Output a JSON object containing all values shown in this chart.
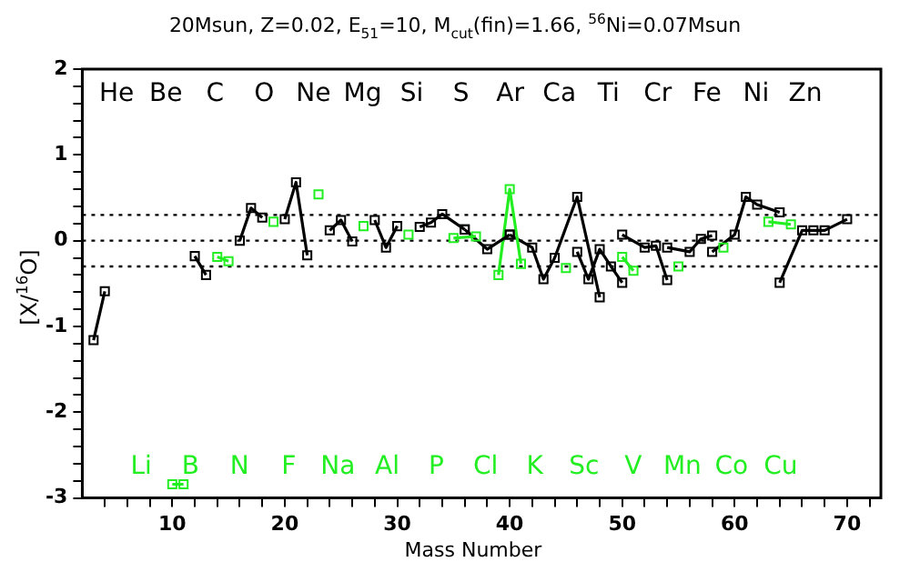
{
  "chart_data": {
    "type": "line",
    "title": "20Msun, Z=0.02, E$_{51}$=10, M$_{cut}$(fin)=1.66, $^{56}$Ni=0.07Msun",
    "xlabel": "Mass Number",
    "ylabel": "[X/$^{16}$O]",
    "xlim": [
      2,
      73
    ],
    "ylim": [
      -3,
      2
    ],
    "xticks": [
      {
        "value": 4,
        "label": null
      },
      {
        "value": 6,
        "label": null
      },
      {
        "value": 8,
        "label": null
      },
      10,
      {
        "value": 12,
        "label": null
      },
      {
        "value": 14,
        "label": null
      },
      {
        "value": 16,
        "label": null
      },
      {
        "value": 18,
        "label": null
      },
      20,
      {
        "value": 22,
        "label": null
      },
      {
        "value": 24,
        "label": null
      },
      {
        "value": 26,
        "label": null
      },
      {
        "value": 28,
        "label": null
      },
      30,
      {
        "value": 32,
        "label": null
      },
      {
        "value": 34,
        "label": null
      },
      {
        "value": 36,
        "label": null
      },
      {
        "value": 38,
        "label": null
      },
      40,
      {
        "value": 42,
        "label": null
      },
      {
        "value": 44,
        "label": null
      },
      {
        "value": 46,
        "label": null
      },
      {
        "value": 48,
        "label": null
      },
      50,
      {
        "value": 52,
        "label": null
      },
      {
        "value": 54,
        "label": null
      },
      {
        "value": 56,
        "label": null
      },
      {
        "value": 58,
        "label": null
      },
      60,
      {
        "value": 62,
        "label": null
      },
      {
        "value": 64,
        "label": null
      },
      {
        "value": 66,
        "label": null
      },
      {
        "value": 68,
        "label": null
      },
      70,
      {
        "value": 72,
        "label": null
      }
    ],
    "yticks": [
      -3,
      {
        "value": -2.8,
        "label": null
      },
      {
        "value": -2.6,
        "label": null
      },
      {
        "value": -2.4,
        "label": null
      },
      {
        "value": -2.2,
        "label": null
      },
      -2,
      {
        "value": -1.8,
        "label": null
      },
      {
        "value": -1.6,
        "label": null
      },
      {
        "value": -1.4,
        "label": null
      },
      {
        "value": -1.2,
        "label": null
      },
      -1,
      {
        "value": -0.8,
        "label": null
      },
      {
        "value": -0.6,
        "label": null
      },
      {
        "value": -0.4,
        "label": null
      },
      {
        "value": -0.2,
        "label": null
      },
      0,
      {
        "value": 0.2,
        "label": null
      },
      {
        "value": 0.4,
        "label": null
      },
      {
        "value": 0.6,
        "label": null
      },
      {
        "value": 0.8,
        "label": null
      },
      1,
      {
        "value": 1.2,
        "label": null
      },
      {
        "value": 1.4,
        "label": null
      },
      {
        "value": 1.6,
        "label": null
      },
      {
        "value": 1.8,
        "label": null
      },
      2
    ],
    "marker": "square",
    "line_style": "solid",
    "ref_lines": [
      {
        "axis": "y",
        "value": 0.3,
        "color": "#000000",
        "line_style": "dotted"
      },
      {
        "axis": "y",
        "value": 0,
        "color": "#000000",
        "line_style": "dotted"
      },
      {
        "axis": "y",
        "value": -0.3,
        "color": "#000000",
        "line_style": "dotted"
      }
    ],
    "annotations": [
      "He",
      "Li",
      "Be",
      "B",
      "C",
      "N",
      "O",
      "F",
      "Ne",
      "Na",
      "Mg",
      "Al",
      "Si",
      "P",
      "S",
      "Cl",
      "Ar",
      "K",
      "Ca",
      "Sc",
      "Ti",
      "V",
      "Cr",
      "Mn",
      "Fe",
      "Co",
      "Ni",
      "Cu",
      "Zn"
    ],
    "series": [
      {
        "color": "#000000",
        "x": [
          3,
          4
        ],
        "values": [
          -1.16,
          -0.59
        ]
      },
      {
        "color": "#22ee22",
        "x": [
          10,
          11
        ],
        "values": [
          -2.84,
          -2.84
        ]
      },
      {
        "color": "#000000",
        "x": [
          12,
          13
        ],
        "values": [
          -0.18,
          -0.4
        ]
      },
      {
        "color": "#22ee22",
        "x": [
          14,
          15
        ],
        "values": [
          -0.19,
          -0.24
        ]
      },
      {
        "color": "#000000",
        "x": [
          16,
          17,
          18
        ],
        "values": [
          0.0,
          0.38,
          0.27
        ]
      },
      {
        "color": "#22ee22",
        "x": [
          19
        ],
        "values": [
          0.22
        ]
      },
      {
        "color": "#000000",
        "x": [
          20,
          21,
          22
        ],
        "values": [
          0.25,
          0.68,
          -0.17
        ]
      },
      {
        "color": "#22ee22",
        "x": [
          23
        ],
        "values": [
          0.54
        ]
      },
      {
        "color": "#000000",
        "x": [
          24,
          25,
          26
        ],
        "values": [
          0.12,
          0.24,
          -0.01
        ]
      },
      {
        "color": "#22ee22",
        "x": [
          27
        ],
        "values": [
          0.17
        ]
      },
      {
        "color": "#000000",
        "x": [
          28,
          29,
          30
        ],
        "values": [
          0.24,
          -0.08,
          0.17
        ]
      },
      {
        "color": "#22ee22",
        "x": [
          31
        ],
        "values": [
          0.07
        ]
      },
      {
        "color": "#000000",
        "x": [
          32,
          33,
          34,
          36
        ],
        "values": [
          0.16,
          0.21,
          0.31,
          0.13
        ]
      },
      {
        "color": "#22ee22",
        "x": [
          35,
          37
        ],
        "values": [
          0.03,
          0.05
        ]
      },
      {
        "color": "#000000",
        "x": [
          36,
          38,
          40
        ],
        "values": [
          0.13,
          -0.1,
          0.07
        ]
      },
      {
        "color": "#22ee22",
        "x": [
          39,
          40,
          41
        ],
        "values": [
          -0.4,
          0.6,
          -0.27
        ]
      },
      {
        "color": "#000000",
        "x": [
          40,
          42,
          43,
          44,
          46,
          48
        ],
        "values": [
          0.07,
          -0.08,
          -0.45,
          -0.2,
          0.51,
          -0.66
        ]
      },
      {
        "color": "#22ee22",
        "x": [
          45
        ],
        "values": [
          -0.32
        ]
      },
      {
        "color": "#000000",
        "x": [
          46,
          47,
          48,
          49,
          50
        ],
        "values": [
          -0.13,
          -0.45,
          -0.1,
          -0.3,
          -0.49
        ]
      },
      {
        "color": "#22ee22",
        "x": [
          50,
          51
        ],
        "values": [
          -0.19,
          -0.35
        ]
      },
      {
        "color": "#000000",
        "x": [
          50,
          52,
          53,
          54
        ],
        "values": [
          0.07,
          -0.08,
          -0.06,
          -0.46
        ]
      },
      {
        "color": "#22ee22",
        "x": [
          55
        ],
        "values": [
          -0.3
        ]
      },
      {
        "color": "#000000",
        "x": [
          54,
          56,
          57,
          58
        ],
        "values": [
          -0.08,
          -0.13,
          0.02,
          0.06
        ]
      },
      {
        "color": "#22ee22",
        "x": [
          59
        ],
        "values": [
          -0.08
        ]
      },
      {
        "color": "#000000",
        "x": [
          58,
          60,
          61,
          62,
          64
        ],
        "values": [
          -0.13,
          0.07,
          0.51,
          0.42,
          0.33
        ]
      },
      {
        "color": "#22ee22",
        "x": [
          63,
          65
        ],
        "values": [
          0.22,
          0.19
        ]
      },
      {
        "color": "#000000",
        "x": [
          64,
          66,
          67,
          68,
          70
        ],
        "values": [
          -0.49,
          0.12,
          0.12,
          0.12,
          0.25
        ]
      }
    ]
  }
}
